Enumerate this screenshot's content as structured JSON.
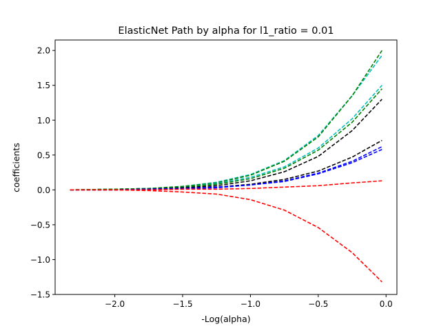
{
  "chart_data": {
    "type": "line",
    "title": "ElasticNet Path by alpha for l1_ratio = 0.01",
    "xlabel": "-Log(alpha)",
    "ylabel": "coefficients",
    "xlim": [
      -2.44,
      0.08
    ],
    "ylim": [
      -1.5,
      2.15
    ],
    "x_ticks": [
      -2.0,
      -1.5,
      -1.0,
      -0.5,
      0.0
    ],
    "x_tick_labels": [
      "−2.0",
      "−1.5",
      "−1.0",
      "−0.5",
      "0.0"
    ],
    "y_ticks": [
      -1.5,
      -1.0,
      -0.5,
      0.0,
      0.5,
      1.0,
      1.5,
      2.0
    ],
    "y_tick_labels": [
      "−1.5",
      "−1.0",
      "−0.5",
      "0.0",
      "0.5",
      "1.0",
      "1.5",
      "2.0"
    ],
    "grid": false,
    "legend": "none",
    "line_style": "dashed",
    "x": [
      -2.33,
      -2.0,
      -1.75,
      -1.5,
      -1.25,
      -1.0,
      -0.75,
      -0.5,
      -0.25,
      -0.03
    ],
    "series": [
      {
        "color": "#00bfbf",
        "values": [
          0.0,
          0.01,
          0.02,
          0.05,
          0.11,
          0.22,
          0.42,
          0.78,
          1.35,
          1.93
        ]
      },
      {
        "color": "#008000",
        "values": [
          0.0,
          0.01,
          0.02,
          0.05,
          0.1,
          0.21,
          0.41,
          0.76,
          1.35,
          2.0
        ]
      },
      {
        "color": "#00bfbf",
        "values": [
          0.0,
          0.01,
          0.02,
          0.04,
          0.09,
          0.18,
          0.33,
          0.6,
          1.02,
          1.5
        ]
      },
      {
        "color": "#008000",
        "values": [
          0.0,
          0.01,
          0.02,
          0.04,
          0.08,
          0.16,
          0.31,
          0.57,
          0.97,
          1.45
        ]
      },
      {
        "color": "#000000",
        "values": [
          0.0,
          0.0,
          0.01,
          0.03,
          0.06,
          0.13,
          0.26,
          0.48,
          0.85,
          1.3
        ]
      },
      {
        "color": "#000000",
        "values": [
          0.0,
          0.0,
          0.01,
          0.02,
          0.04,
          0.08,
          0.15,
          0.27,
          0.47,
          0.71
        ]
      },
      {
        "color": "#0000ff",
        "values": [
          0.0,
          0.0,
          0.01,
          0.02,
          0.04,
          0.07,
          0.13,
          0.24,
          0.41,
          0.62
        ]
      },
      {
        "color": "#0000ff",
        "values": [
          0.0,
          0.0,
          0.01,
          0.02,
          0.03,
          0.07,
          0.12,
          0.23,
          0.39,
          0.58
        ]
      },
      {
        "color": "#ff0000",
        "values": [
          0.0,
          0.0,
          0.0,
          0.01,
          0.01,
          0.02,
          0.04,
          0.06,
          0.1,
          0.13
        ]
      },
      {
        "color": "#ff0000",
        "values": [
          0.0,
          0.0,
          -0.01,
          -0.03,
          -0.06,
          -0.14,
          -0.29,
          -0.54,
          -0.9,
          -1.32
        ]
      }
    ]
  }
}
